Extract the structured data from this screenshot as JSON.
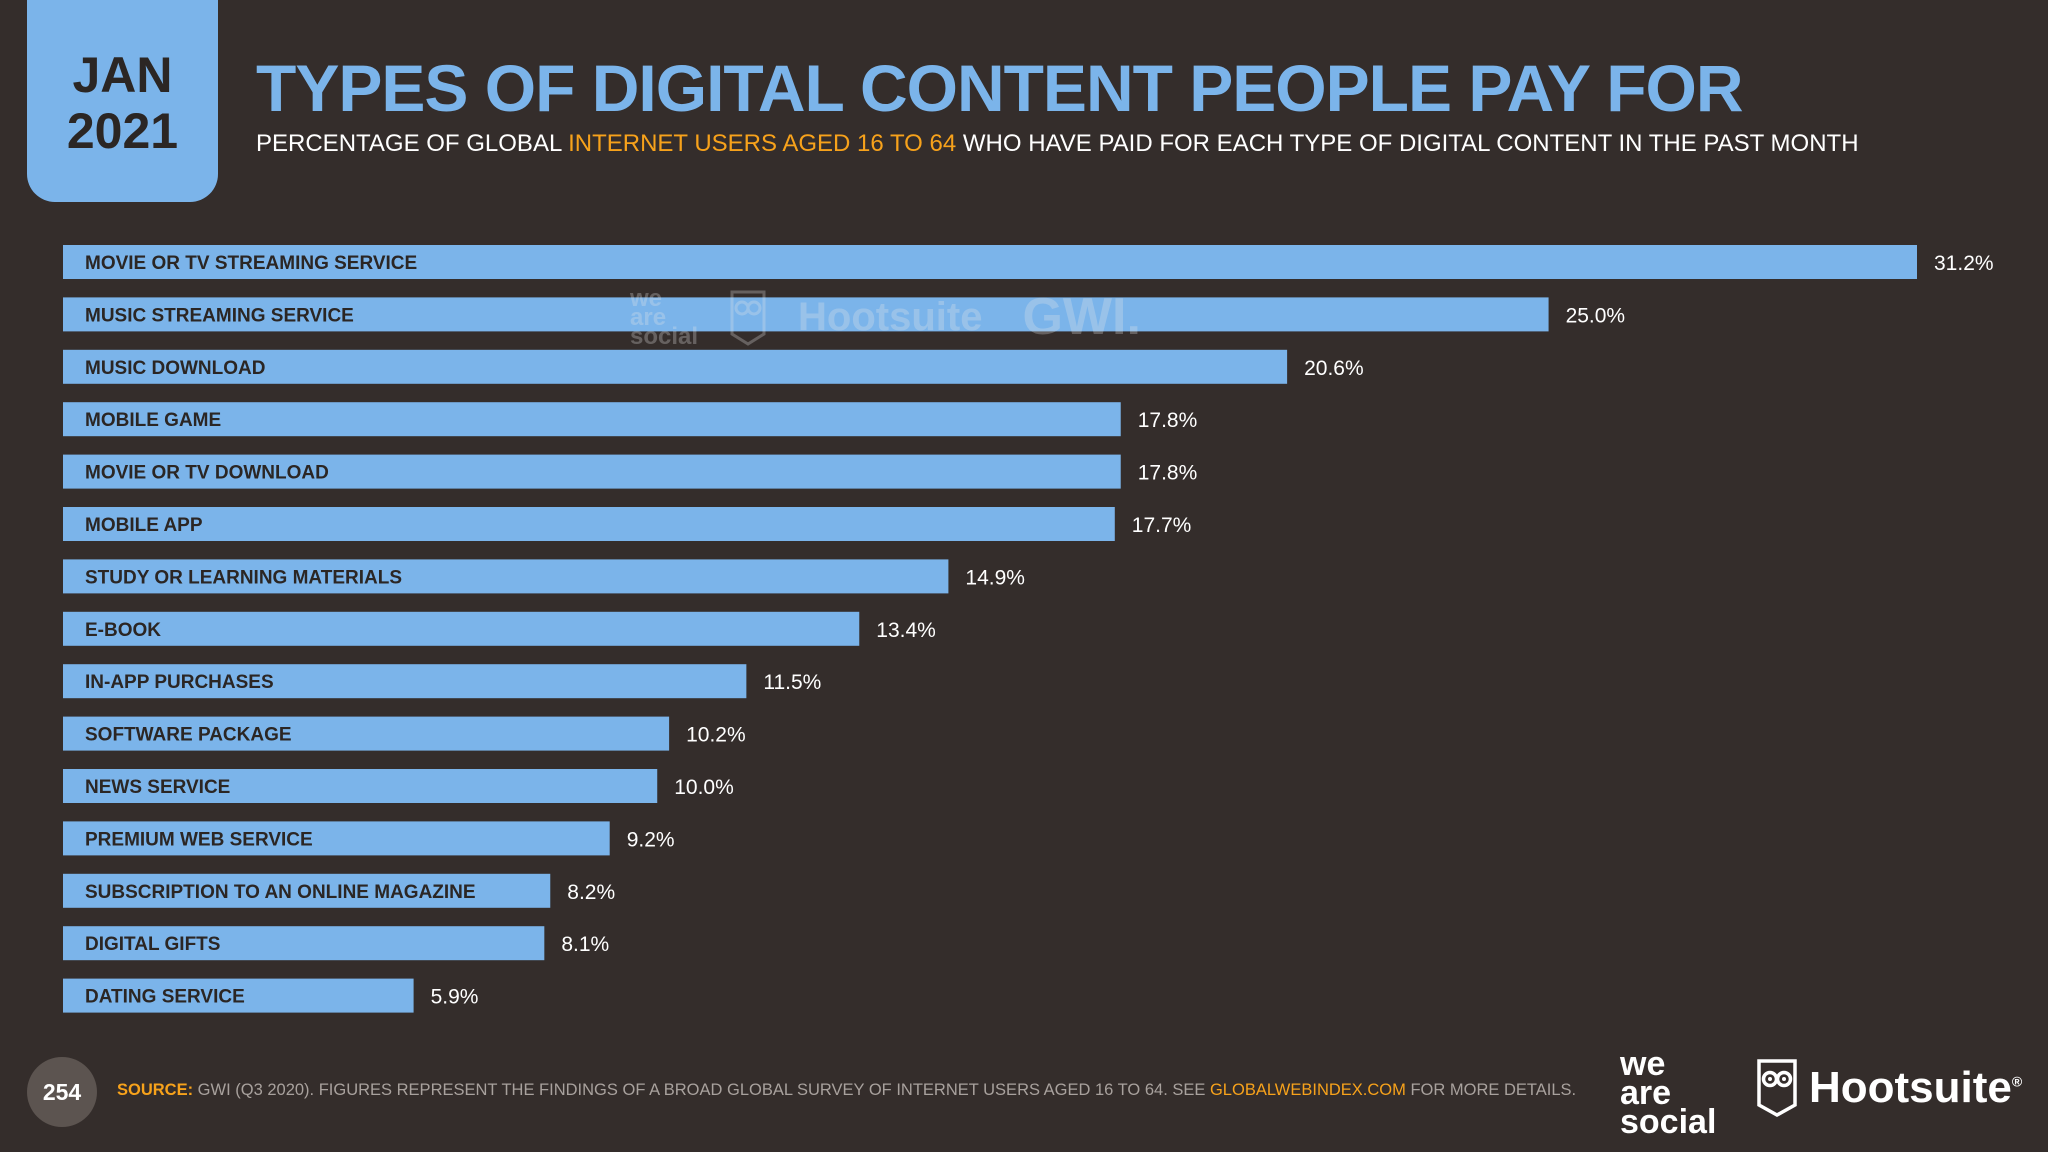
{
  "header": {
    "date_month": "JAN",
    "date_year": "2021",
    "title": "TYPES OF DIGITAL CONTENT PEOPLE PAY FOR",
    "subtitle_pre": "PERCENTAGE OF GLOBAL ",
    "subtitle_highlight": "INTERNET USERS AGED 16 TO 64",
    "subtitle_post": " WHO HAVE PAID FOR EACH TYPE OF DIGITAL CONTENT IN THE PAST MONTH"
  },
  "colors": {
    "background": "#342d2b",
    "bar": "#7bb4ea",
    "accent": "#f7a21b",
    "bar_label": "#2b2624"
  },
  "chart_data": {
    "type": "bar",
    "orientation": "horizontal",
    "categories": [
      "MOVIE OR TV STREAMING SERVICE",
      "MUSIC STREAMING SERVICE",
      "MUSIC DOWNLOAD",
      "MOBILE GAME",
      "MOVIE OR TV DOWNLOAD",
      "MOBILE APP",
      "STUDY OR LEARNING MATERIALS",
      "E-BOOK",
      "IN-APP PURCHASES",
      "SOFTWARE PACKAGE",
      "NEWS SERVICE",
      "PREMIUM WEB SERVICE",
      "SUBSCRIPTION TO AN ONLINE MAGAZINE",
      "DIGITAL GIFTS",
      "DATING SERVICE"
    ],
    "values": [
      31.2,
      25.0,
      20.6,
      17.8,
      17.8,
      17.7,
      14.9,
      13.4,
      11.5,
      10.2,
      10.0,
      9.2,
      8.2,
      8.1,
      5.9
    ],
    "value_labels": [
      "31.2%",
      "25.0%",
      "20.6%",
      "17.8%",
      "17.8%",
      "17.7%",
      "14.9%",
      "13.4%",
      "11.5%",
      "10.2%",
      "10.0%",
      "9.2%",
      "8.2%",
      "8.1%",
      "5.9%"
    ],
    "unit": "%",
    "xlim": [
      0,
      31.2
    ],
    "grid": false,
    "legend": "none"
  },
  "watermark": {
    "was_1": "we",
    "was_2": "are",
    "was_3": "social",
    "hootsuite": "Hootsuite",
    "gwi": "GWI."
  },
  "footer": {
    "page_number": "254",
    "source_label": "SOURCE:",
    "source_text": " GWI (Q3 2020). FIGURES REPRESENT THE FINDINGS OF A BROAD GLOBAL SURVEY OF INTERNET USERS AGED 16 TO 64. SEE ",
    "source_link": "GLOBALWEBINDEX.COM",
    "source_tail": " FOR MORE DETAILS.",
    "logo_was_1": "we",
    "logo_was_2": "are",
    "logo_was_3": "social",
    "logo_hootsuite": "Hootsuite",
    "logo_hootsuite_reg": "®"
  }
}
